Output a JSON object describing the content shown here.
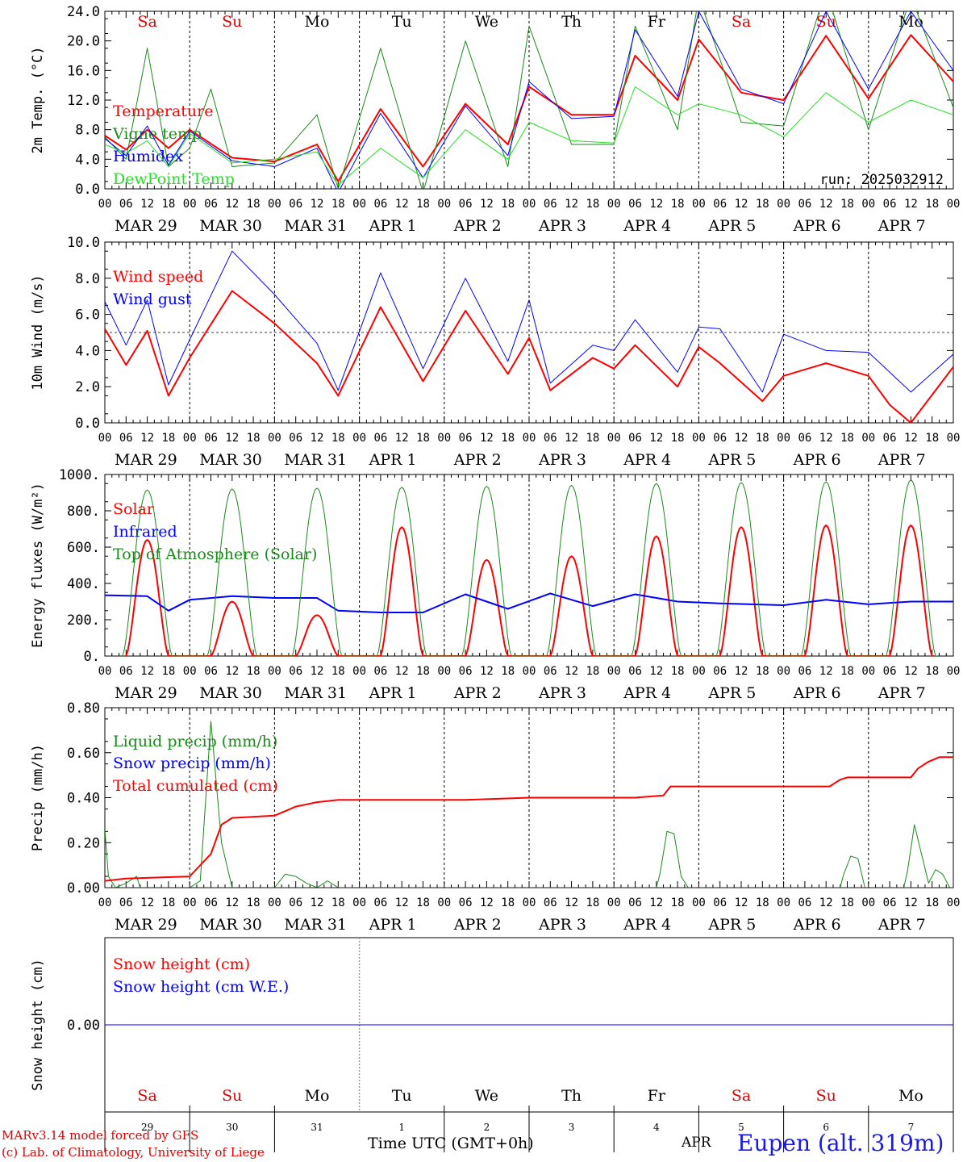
{
  "colors": {
    "red": "#ff0000",
    "darkgreen": "#1a8a1a",
    "blue": "#0000ff",
    "lightgreen": "#22e022",
    "axis": "#000000"
  },
  "day_abbr": [
    "Sa",
    "Su",
    "Mo",
    "Tu",
    "We",
    "Th",
    "Fr",
    "Sa",
    "Su",
    "Mo"
  ],
  "day_abbr_colors": [
    "red",
    "red",
    "black",
    "black",
    "black",
    "black",
    "black",
    "red",
    "red",
    "black"
  ],
  "date_labels": [
    "MAR 29",
    "MAR 30",
    "MAR 31",
    "APR  1",
    "APR  2",
    "APR  3",
    "APR  4",
    "APR  5",
    "APR  6",
    "APR  7"
  ],
  "hour_tick_labels": [
    "00",
    "06",
    "12",
    "18"
  ],
  "final_hour_label": "00",
  "run_label": "run: 2025032912",
  "bottom_axis": {
    "day_numbers": [
      "29",
      "30",
      "31",
      "1",
      "2",
      "3",
      "4",
      "5",
      "6",
      "7"
    ],
    "xlabel": "Time UTC (GMT+0h)",
    "month": "APR"
  },
  "footer": {
    "model": "MARv3.14 model forced by GFS",
    "credit": "(c) Lab. of Climatology, University of Liege",
    "station": "Eupen (alt. 319m)"
  },
  "chart_data": [
    {
      "type": "line",
      "ylabel": "2m Temp. (°C)",
      "ylim": [
        0,
        24
      ],
      "ytick_labels": [
        "0.0",
        "4.0",
        "8.0",
        "12.0",
        "16.0",
        "20.0",
        "24.0"
      ],
      "reference_line": 0,
      "x_unit": "hours since 2025-03-29 00 UTC",
      "series": [
        {
          "name": "Temperature",
          "color": "red",
          "width": 2,
          "x": [
            0,
            6,
            12,
            18,
            24,
            36,
            48,
            60,
            66,
            78,
            90,
            102,
            114,
            120,
            132,
            144,
            150,
            162,
            168,
            180,
            192,
            204,
            216,
            228,
            240
          ],
          "y": [
            7.2,
            5.3,
            8.0,
            5.5,
            8.0,
            4.2,
            3.7,
            6.0,
            1.0,
            10.8,
            3.0,
            11.5,
            6.0,
            13.8,
            10.0,
            10.0,
            18.0,
            12.0,
            20.2,
            13.0,
            12.0,
            20.7,
            12.2,
            20.8,
            14.5
          ]
        },
        {
          "name": "Vigne temp",
          "color": "darkgreen",
          "width": 1,
          "x": [
            0,
            6,
            12,
            18,
            24,
            30,
            36,
            48,
            60,
            66,
            78,
            90,
            102,
            114,
            120,
            132,
            144,
            150,
            162,
            168,
            180,
            192,
            204,
            216,
            228,
            240
          ],
          "y": [
            7.0,
            4.0,
            19.0,
            3.0,
            5.5,
            13.5,
            3.0,
            3.5,
            10.0,
            0.0,
            19.0,
            -0.5,
            20.0,
            3.0,
            22.0,
            6.0,
            6.0,
            22.0,
            8.0,
            26.0,
            9.0,
            8.5,
            27.0,
            8.0,
            26.0,
            11.0
          ]
        },
        {
          "name": "Humidex",
          "color": "blue",
          "width": 1,
          "x": [
            0,
            6,
            12,
            18,
            24,
            36,
            48,
            60,
            66,
            78,
            90,
            102,
            114,
            120,
            132,
            144,
            150,
            162,
            168,
            180,
            192,
            204,
            216,
            228,
            240
          ],
          "y": [
            6.8,
            4.5,
            8.5,
            3.2,
            7.8,
            3.8,
            3.0,
            5.5,
            -0.5,
            10.2,
            1.5,
            11.2,
            4.5,
            14.5,
            9.5,
            9.8,
            21.5,
            12.5,
            24.0,
            13.5,
            11.5,
            24.0,
            13.5,
            24.0,
            16.0
          ]
        },
        {
          "name": "DewPoint Temp",
          "color": "lightgreen",
          "width": 1,
          "x": [
            0,
            6,
            12,
            18,
            24,
            36,
            48,
            60,
            66,
            78,
            90,
            102,
            114,
            120,
            132,
            144,
            150,
            162,
            168,
            180,
            192,
            204,
            216,
            228,
            240
          ],
          "y": [
            6.0,
            4.8,
            6.5,
            3.0,
            7.5,
            3.5,
            4.0,
            5.0,
            0.5,
            5.5,
            1.5,
            8.0,
            4.0,
            9.0,
            6.5,
            6.2,
            13.8,
            10.0,
            11.5,
            10.0,
            7.0,
            13.0,
            9.0,
            12.0,
            10.0
          ]
        }
      ]
    },
    {
      "type": "line",
      "ylabel": "10m Wind (m/s)",
      "ylim": [
        0,
        10
      ],
      "ytick_labels": [
        "0.0",
        "2.0",
        "4.0",
        "6.0",
        "8.0",
        "10.0"
      ],
      "reference_line": 5,
      "series": [
        {
          "name": "Wind speed",
          "color": "red",
          "width": 2,
          "x": [
            0,
            6,
            12,
            18,
            24,
            36,
            48,
            60,
            66,
            78,
            90,
            102,
            114,
            120,
            126,
            138,
            144,
            150,
            162,
            168,
            174,
            186,
            192,
            204,
            216,
            222,
            228,
            240
          ],
          "y": [
            5.2,
            3.2,
            5.1,
            1.5,
            3.6,
            7.3,
            5.5,
            3.3,
            1.5,
            6.4,
            2.3,
            6.2,
            2.7,
            4.7,
            1.8,
            3.6,
            3.0,
            4.3,
            2.0,
            4.2,
            3.3,
            1.2,
            2.6,
            3.3,
            2.6,
            1.0,
            0.0,
            3.1
          ]
        },
        {
          "name": "Wind gust",
          "color": "blue",
          "width": 1,
          "x": [
            0,
            6,
            12,
            18,
            24,
            36,
            48,
            60,
            66,
            78,
            90,
            102,
            114,
            120,
            126,
            138,
            144,
            150,
            162,
            168,
            174,
            186,
            192,
            204,
            216,
            222,
            228,
            240
          ],
          "y": [
            6.7,
            4.3,
            6.8,
            2.1,
            4.6,
            9.5,
            7.1,
            4.4,
            1.8,
            8.3,
            3.0,
            8.0,
            3.4,
            6.8,
            2.2,
            4.3,
            4.0,
            5.7,
            2.8,
            5.3,
            5.2,
            1.7,
            4.9,
            4.0,
            3.9,
            2.8,
            1.7,
            3.8
          ]
        }
      ]
    },
    {
      "type": "line",
      "ylabel": "Energy fluxes (W/m²)",
      "ylim": [
        0,
        1000
      ],
      "ytick_labels": [
        "0.",
        "200.",
        "400.",
        "600.",
        "800.",
        "1000."
      ],
      "series": [
        {
          "name": "Solar",
          "color": "red",
          "width": 2,
          "peaks": [
            640,
            300,
            225,
            710,
            530,
            550,
            660,
            710,
            720,
            720
          ]
        },
        {
          "name": "Infrared",
          "color": "blue",
          "width": 2,
          "x": [
            0,
            12,
            18,
            24,
            36,
            48,
            60,
            66,
            78,
            90,
            102,
            114,
            126,
            138,
            150,
            162,
            174,
            192,
            204,
            216,
            228,
            240
          ],
          "y": [
            335,
            330,
            250,
            310,
            330,
            320,
            320,
            250,
            240,
            240,
            340,
            260,
            345,
            275,
            340,
            300,
            290,
            280,
            310,
            285,
            300,
            300
          ]
        },
        {
          "name": "Top of Atmosphere (Solar)",
          "color": "darkgreen",
          "width": 1,
          "peaks": [
            915,
            920,
            925,
            930,
            935,
            940,
            950,
            955,
            960,
            970
          ]
        }
      ]
    },
    {
      "type": "line",
      "ylabel": "Precip (mm/h)",
      "ylim": [
        0,
        0.8
      ],
      "ytick_labels": [
        "0.00",
        "0.20",
        "0.40",
        "0.60",
        "0.80"
      ],
      "series": [
        {
          "name": "Liquid precip (mm/h)",
          "color": "darkgreen",
          "width": 1,
          "x": [
            0,
            1,
            3,
            6,
            9,
            10,
            12,
            15,
            18,
            21,
            24,
            27,
            30,
            33,
            36,
            39,
            42,
            48,
            51,
            54,
            57,
            60,
            63,
            66,
            114,
            120,
            156,
            157,
            159,
            161,
            163,
            165,
            208,
            209,
            211,
            213,
            215,
            226,
            227,
            229,
            231,
            233,
            235,
            237,
            239,
            240
          ],
          "y": [
            0.26,
            0.05,
            0.0,
            0.02,
            0.05,
            0.0,
            0.0,
            0.0,
            0.0,
            0.0,
            0.0,
            0.03,
            0.74,
            0.2,
            0.0,
            0.0,
            0.0,
            0.0,
            0.06,
            0.05,
            0.02,
            0.0,
            0.03,
            0.0,
            0.0,
            0.0,
            0.0,
            0.06,
            0.25,
            0.24,
            0.05,
            0.0,
            0.0,
            0.06,
            0.14,
            0.13,
            0.0,
            0.0,
            0.07,
            0.28,
            0.15,
            0.02,
            0.08,
            0.06,
            0.0,
            0.0
          ]
        },
        {
          "name": "Snow precip (mm/h)",
          "color": "blue",
          "width": 1,
          "x": [
            0,
            240
          ],
          "y": [
            0,
            0
          ]
        },
        {
          "name": "Total cumulated (cm)",
          "color": "red",
          "width": 2,
          "x": [
            0,
            6,
            24,
            30,
            33,
            36,
            48,
            54,
            60,
            66,
            102,
            120,
            150,
            158,
            160,
            205,
            208,
            210,
            228,
            230,
            233,
            236,
            240
          ],
          "y": [
            0.03,
            0.04,
            0.05,
            0.15,
            0.28,
            0.31,
            0.32,
            0.36,
            0.38,
            0.39,
            0.39,
            0.4,
            0.4,
            0.41,
            0.45,
            0.45,
            0.48,
            0.49,
            0.49,
            0.53,
            0.56,
            0.58,
            0.58
          ]
        }
      ]
    },
    {
      "type": "line",
      "ylabel": "Snow height (cm)",
      "ylim": [
        -1,
        1
      ],
      "ytick_labels": [
        "0.00"
      ],
      "series": [
        {
          "name": "Snow height (cm)",
          "color": "red",
          "width": 1,
          "x": [
            0,
            240
          ],
          "y": [
            0,
            0
          ]
        },
        {
          "name": "Snow height (cm W.E.)",
          "color": "blue",
          "width": 1,
          "x": [
            0,
            240
          ],
          "y": [
            0,
            0
          ]
        }
      ]
    }
  ]
}
